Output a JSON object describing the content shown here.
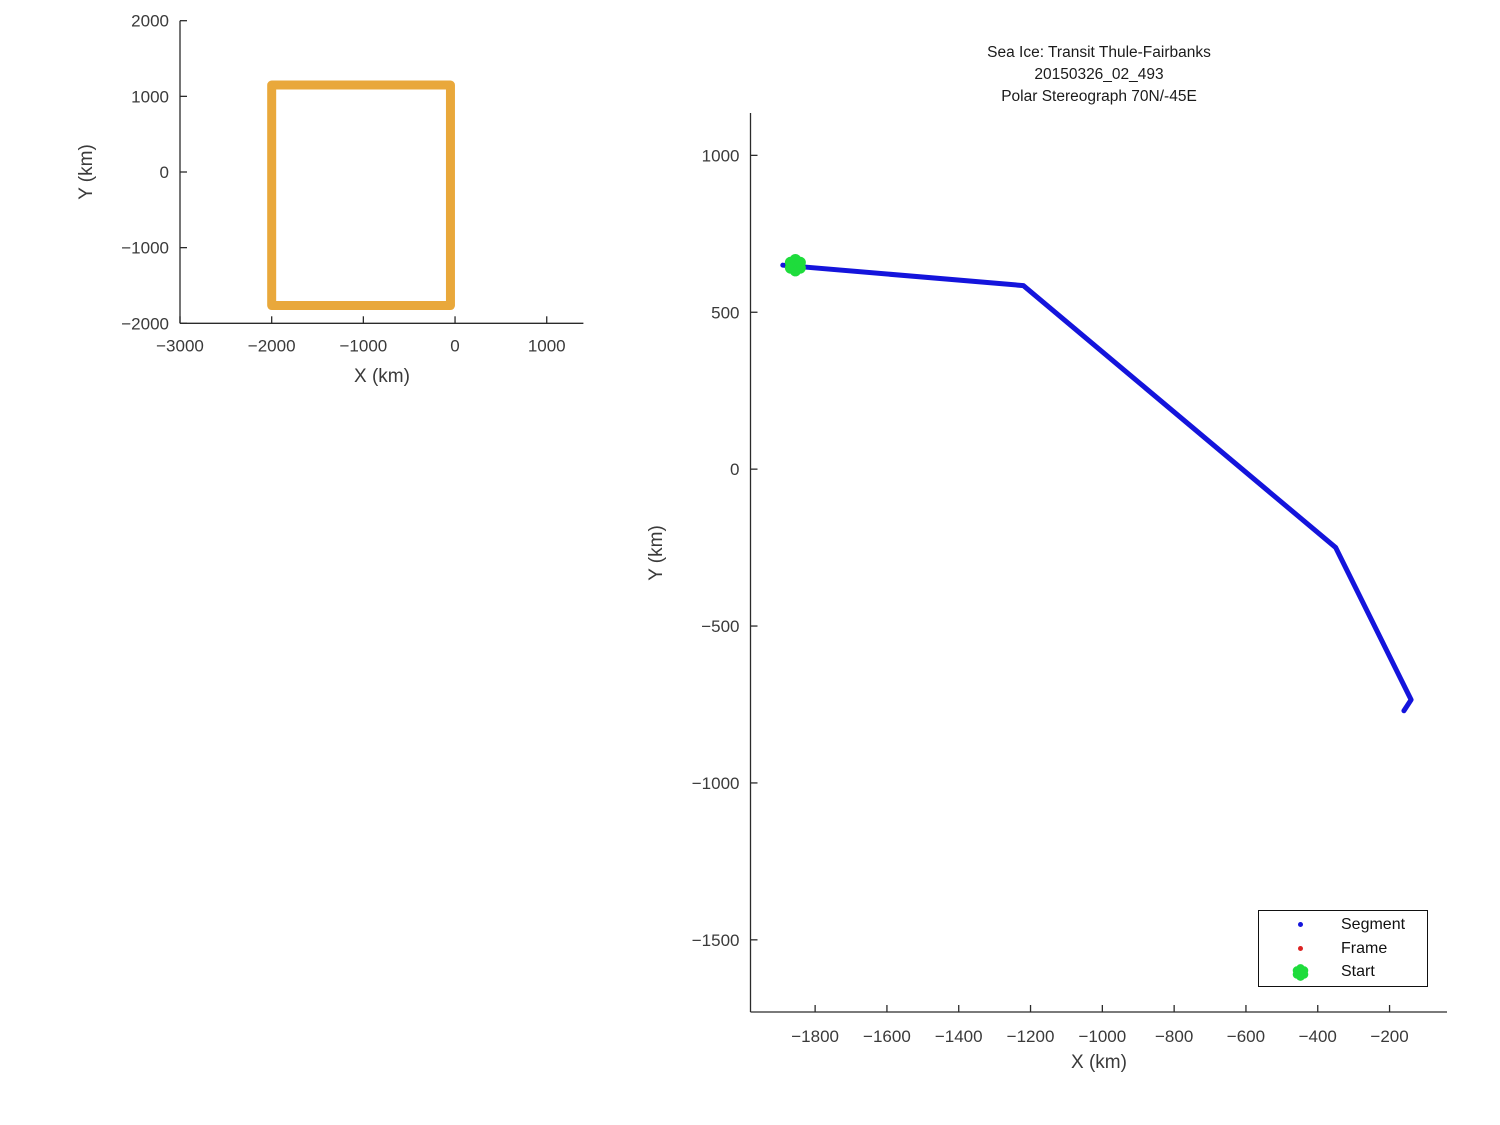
{
  "figure": {
    "background": "#FFFFFF",
    "axis_color": "#2B2B2B",
    "text_color": "#3A3A3A"
  },
  "chart_data": [
    {
      "id": "overview",
      "type": "line",
      "title": "",
      "xlabel": "X (km)",
      "ylabel": "Y (km)",
      "xlim": [
        -3000,
        1400
      ],
      "ylim": [
        -2000,
        2000
      ],
      "x_ticks": [
        -3000,
        -2000,
        -1000,
        0,
        1000
      ],
      "y_ticks": [
        -2000,
        -1000,
        0,
        1000,
        2000
      ],
      "grid": false,
      "series": [
        {
          "name": "coverage-box",
          "color": "#E9A83B",
          "linewidth": 9,
          "x": [
            -2000,
            -50,
            -50,
            -2000,
            -2000
          ],
          "y": [
            1150,
            1150,
            -1765,
            -1765,
            1150
          ]
        }
      ],
      "markers": []
    },
    {
      "id": "transit",
      "type": "line",
      "title": "Sea Ice: Transit Thule-Fairbanks\n20150326_02_493\nPolar Stereograph 70N/-45E",
      "title_lines": [
        "Sea Ice: Transit Thule-Fairbanks",
        "20150326_02_493",
        "Polar Stereograph 70N/-45E"
      ],
      "xlabel": "X (km)",
      "ylabel": "Y (km)",
      "xlim": [
        -1980,
        -40
      ],
      "ylim": [
        -1730,
        1135
      ],
      "x_ticks": [
        -1800,
        -1600,
        -1400,
        -1200,
        -1000,
        -800,
        -600,
        -400,
        -200
      ],
      "y_ticks": [
        -1500,
        -1000,
        -500,
        0,
        500,
        1000
      ],
      "grid": false,
      "series": [
        {
          "name": "Segment",
          "color": "#1414DC",
          "linewidth": 5,
          "x": [
            -1890,
            -1220,
            -350,
            -140,
            -160
          ],
          "y": [
            650,
            585,
            -250,
            -735,
            -770
          ]
        }
      ],
      "markers": [
        {
          "name": "Start",
          "shape": "cluster",
          "color": "#1EDC3C",
          "x": -1855,
          "y": 650,
          "size": 22
        }
      ],
      "legend": {
        "position": "lower-right",
        "entries": [
          {
            "label": "Segment",
            "marker": "dot",
            "color": "#1414DC"
          },
          {
            "label": "Frame",
            "marker": "dot",
            "color": "#DC2323"
          },
          {
            "label": "Start",
            "marker": "cluster",
            "color": "#1EDC3C"
          }
        ]
      }
    }
  ]
}
